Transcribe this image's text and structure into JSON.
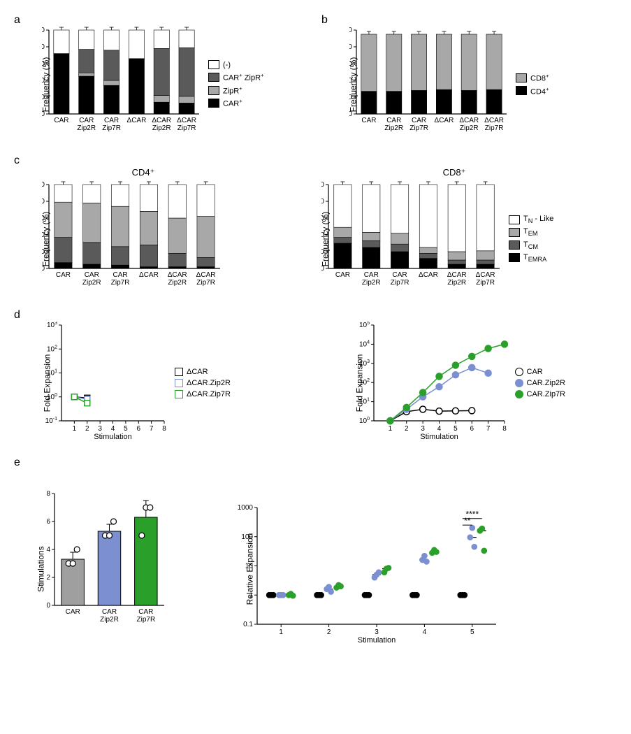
{
  "colors": {
    "black": "#000000",
    "grey_dark": "#5a5a5a",
    "grey_mid": "#a8a8a8",
    "grey_light": "#c8c8c8",
    "white": "#ffffff",
    "blue": "#7b8fd1",
    "green": "#2aa02a",
    "car_grey": "#9f9f9f"
  },
  "panelA": {
    "label": "a",
    "ylabel": "Frequency (%)",
    "ylim": [
      0,
      100
    ],
    "ytick_step": 20,
    "categories": [
      "CAR",
      "CAR\nZip2R",
      "CAR\nZip7R",
      "ΔCAR",
      "ΔCAR\nZip2R",
      "ΔCAR\nZip7R"
    ],
    "stacks": [
      {
        "car": 72,
        "zipr": 0,
        "carzipr": 0,
        "neg": 28
      },
      {
        "car": 45,
        "zipr": 4,
        "carzipr": 28,
        "neg": 23
      },
      {
        "car": 34,
        "zipr": 6,
        "carzipr": 36,
        "neg": 24
      },
      {
        "car": 66,
        "zipr": 0,
        "carzipr": 0,
        "neg": 34
      },
      {
        "car": 14,
        "zipr": 8,
        "carzipr": 56,
        "neg": 22
      },
      {
        "car": 13,
        "zipr": 8,
        "carzipr": 58,
        "neg": 21
      }
    ],
    "legend": [
      {
        "key": "neg",
        "label": "(-)",
        "color": "#ffffff"
      },
      {
        "key": "carzipr",
        "label": "CAR⁺ ZipR⁺",
        "color": "#5a5a5a"
      },
      {
        "key": "zipr",
        "label": "ZipR⁺",
        "color": "#a8a8a8"
      },
      {
        "key": "car",
        "label": "CAR⁺",
        "color": "#000000"
      }
    ]
  },
  "panelB": {
    "label": "b",
    "ylabel": "Frequency (%)",
    "ylim": [
      0,
      100
    ],
    "ytick_step": 20,
    "categories": [
      "CAR",
      "CAR\nZip2R",
      "CAR\nZip7R",
      "ΔCAR",
      "ΔCAR\nZip2R",
      "ΔCAR\nZip7R"
    ],
    "stacks": [
      {
        "cd4": 27,
        "cd8": 68
      },
      {
        "cd4": 27,
        "cd8": 68
      },
      {
        "cd4": 28,
        "cd8": 67
      },
      {
        "cd4": 29,
        "cd8": 66
      },
      {
        "cd4": 28,
        "cd8": 67
      },
      {
        "cd4": 29,
        "cd8": 66
      }
    ],
    "legend": [
      {
        "key": "cd8",
        "label": "CD8⁺",
        "color": "#a8a8a8"
      },
      {
        "key": "cd4",
        "label": "CD4⁺",
        "color": "#000000"
      }
    ]
  },
  "panelC": {
    "label": "c",
    "ylabel": "Frequency (%)",
    "ylim": [
      0,
      100
    ],
    "ytick_step": 20,
    "categories": [
      "CAR",
      "CAR\nZip2R",
      "CAR\nZip7R",
      "ΔCAR",
      "ΔCAR\nZip2R",
      "ΔCAR\nZip7R"
    ],
    "cd4_title": "CD4⁺",
    "cd8_title": "CD8⁺",
    "cd4_stacks": [
      {
        "temra": 7,
        "tcm": 30,
        "tem": 42,
        "tn": 21
      },
      {
        "temra": 5,
        "tcm": 26,
        "tem": 47,
        "tn": 22
      },
      {
        "temra": 4,
        "tcm": 22,
        "tem": 48,
        "tn": 26
      },
      {
        "temra": 2,
        "tcm": 26,
        "tem": 40,
        "tn": 32
      },
      {
        "temra": 2,
        "tcm": 16,
        "tem": 42,
        "tn": 40
      },
      {
        "temra": 2,
        "tcm": 11,
        "tem": 49,
        "tn": 38
      }
    ],
    "cd8_stacks": [
      {
        "temra": 30,
        "tcm": 7,
        "tem": 12,
        "tn": 51
      },
      {
        "temra": 25,
        "tcm": 8,
        "tem": 10,
        "tn": 57
      },
      {
        "temra": 20,
        "tcm": 9,
        "tem": 13,
        "tn": 58
      },
      {
        "temra": 12,
        "tcm": 6,
        "tem": 7,
        "tn": 75
      },
      {
        "temra": 5,
        "tcm": 5,
        "tem": 10,
        "tn": 80
      },
      {
        "temra": 5,
        "tcm": 5,
        "tem": 11,
        "tn": 79
      }
    ],
    "legend": [
      {
        "key": "tn",
        "label": "T_N - Like",
        "color": "#ffffff"
      },
      {
        "key": "tem",
        "label": "T_EM",
        "color": "#a8a8a8"
      },
      {
        "key": "tcm",
        "label": "T_CM",
        "color": "#5a5a5a"
      },
      {
        "key": "temra",
        "label": "T_EMRA",
        "color": "#000000"
      }
    ]
  },
  "panelD": {
    "label": "d",
    "ylabel": "Fold Expansion",
    "xlabel": "Stimulation",
    "left": {
      "ylim_exp": [
        -1,
        3
      ],
      "xlim": [
        0,
        8
      ],
      "series": [
        {
          "name": "ΔCAR",
          "color": "#000000",
          "points": [
            {
              "x": 1,
              "y": 1
            },
            {
              "x": 2,
              "y": 0.9
            }
          ]
        },
        {
          "name": "ΔCAR.Zip2R",
          "color": "#7b8fd1",
          "points": [
            {
              "x": 1,
              "y": 1
            },
            {
              "x": 2,
              "y": 0.8
            }
          ]
        },
        {
          "name": "ΔCAR.Zip7R",
          "color": "#2aa02a",
          "points": [
            {
              "x": 1,
              "y": 1
            },
            {
              "x": 2,
              "y": 0.55
            }
          ]
        }
      ]
    },
    "right": {
      "ylim_exp": [
        0,
        5
      ],
      "xlim": [
        0,
        8
      ],
      "series": [
        {
          "name": "CAR",
          "color": "#000000",
          "fill": "#ffffff",
          "points": [
            {
              "x": 1,
              "y": 1
            },
            {
              "x": 2,
              "y": 3
            },
            {
              "x": 3,
              "y": 4
            },
            {
              "x": 4,
              "y": 3.2
            },
            {
              "x": 5,
              "y": 3.3
            },
            {
              "x": 6,
              "y": 3.4
            }
          ]
        },
        {
          "name": "CAR.Zip2R",
          "color": "#7b8fd1",
          "fill": "#7b8fd1",
          "points": [
            {
              "x": 1,
              "y": 1
            },
            {
              "x": 2,
              "y": 4
            },
            {
              "x": 3,
              "y": 18
            },
            {
              "x": 4,
              "y": 60
            },
            {
              "x": 5,
              "y": 250
            },
            {
              "x": 6,
              "y": 600
            },
            {
              "x": 7,
              "y": 310
            }
          ]
        },
        {
          "name": "CAR.Zip7R",
          "color": "#2aa02a",
          "fill": "#2aa02a",
          "points": [
            {
              "x": 1,
              "y": 1
            },
            {
              "x": 2,
              "y": 5
            },
            {
              "x": 3,
              "y": 30
            },
            {
              "x": 4,
              "y": 210
            },
            {
              "x": 5,
              "y": 800
            },
            {
              "x": 6,
              "y": 2300
            },
            {
              "x": 7,
              "y": 6000
            },
            {
              "x": 8,
              "y": 10000
            }
          ]
        }
      ]
    }
  },
  "panelE": {
    "label": "e",
    "left": {
      "ylabel": "Stimulations",
      "ylim": [
        0,
        8
      ],
      "ytick_step": 2,
      "categories": [
        "CAR",
        "CAR\nZip2R",
        "CAR\nZip7R"
      ],
      "bars": [
        {
          "mean": 3.3,
          "err": 0.5,
          "points": [
            3,
            3,
            4
          ],
          "color": "#9f9f9f"
        },
        {
          "mean": 5.3,
          "err": 0.5,
          "points": [
            5,
            5,
            6
          ],
          "color": "#7b8fd1"
        },
        {
          "mean": 6.3,
          "err": 1.2,
          "points": [
            5,
            7,
            7
          ],
          "color": "#2aa02a"
        }
      ]
    },
    "right": {
      "ylabel": "Relative Expansion",
      "xlabel": "Stimulation",
      "ylim_exp": [
        -1,
        3
      ],
      "xvals": [
        1,
        2,
        3,
        4,
        5
      ],
      "series": [
        {
          "name": "CAR",
          "color": "#000000",
          "fill": "#000000",
          "groups": [
            [
              1,
              1,
              1
            ],
            [
              1,
              1,
              1
            ],
            [
              1,
              1,
              1
            ],
            [
              1,
              1,
              1
            ],
            [
              1,
              1,
              1
            ]
          ]
        },
        {
          "name": "CAR.Zip2R",
          "color": "#7b8fd1",
          "fill": "#7b8fd1",
          "groups": [
            [
              1,
              1,
              1
            ],
            [
              1.6,
              1.9,
              1.3
            ],
            [
              4,
              5,
              6
            ],
            [
              16,
              22,
              14
            ],
            [
              95,
              200,
              45
            ]
          ]
        },
        {
          "name": "CAR.Zip7R",
          "color": "#2aa02a",
          "fill": "#2aa02a",
          "groups": [
            [
              1,
              1.1,
              0.95
            ],
            [
              1.8,
              2.2,
              2
            ],
            [
              6,
              8,
              8.5
            ],
            [
              28,
              35,
              30
            ],
            [
              160,
              190,
              33
            ]
          ]
        }
      ],
      "sig": [
        {
          "label": "**",
          "y": 250
        },
        {
          "label": "****",
          "y": 420
        }
      ]
    }
  }
}
